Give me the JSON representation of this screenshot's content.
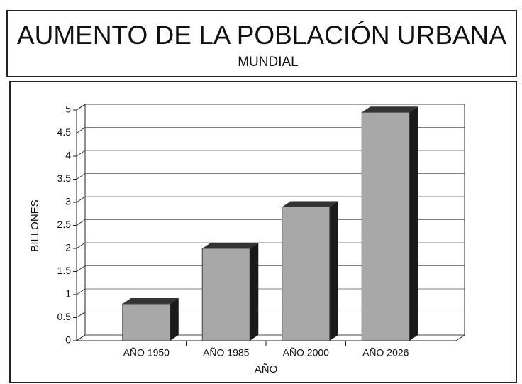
{
  "chart_data": {
    "type": "bar",
    "title": "AUMENTO DE LA POBLACIÓN URBANA",
    "subtitle": "MUNDIAL",
    "y_label": "BILLONES",
    "x_label": "AÑO",
    "categories": [
      "AÑO 1950",
      "AÑO 1985",
      "AÑO 2000",
      "AÑO 2026"
    ],
    "values": [
      0.8,
      2.0,
      2.9,
      4.95
    ],
    "color": "#a8a8a8",
    "ylim": [
      0,
      5
    ],
    "yticks": [
      0,
      0.5,
      1,
      1.5,
      2,
      2.5,
      3,
      3.5,
      4,
      4.5,
      5
    ],
    "grid": true
  }
}
